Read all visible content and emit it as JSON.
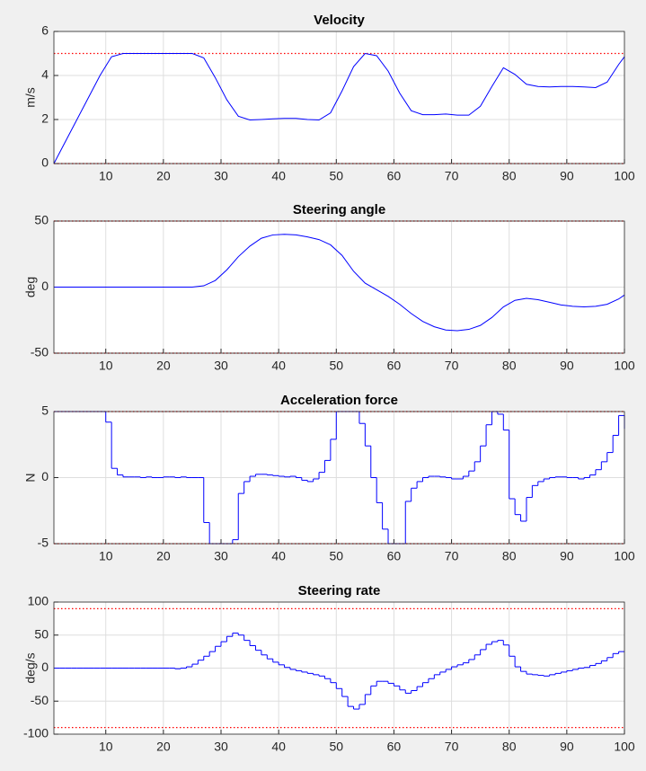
{
  "chart_data": [
    {
      "type": "line",
      "title": "Velocity",
      "ylabel": "m/s",
      "x": [
        1,
        3,
        5,
        7,
        9,
        11,
        13,
        15,
        17,
        19,
        21,
        23,
        25,
        27,
        29,
        31,
        33,
        35,
        37,
        39,
        41,
        43,
        45,
        47,
        49,
        51,
        53,
        55,
        57,
        59,
        61,
        63,
        65,
        67,
        69,
        71,
        73,
        75,
        77,
        79,
        81,
        83,
        85,
        87,
        89,
        91,
        93,
        95,
        97,
        99,
        100
      ],
      "series": [
        {
          "color": "#0000ff",
          "values": [
            0,
            1,
            2,
            3,
            4,
            4.85,
            5,
            5,
            5,
            5,
            5,
            5,
            5,
            4.8,
            3.9,
            2.9,
            2.15,
            1.98,
            2,
            2.03,
            2.05,
            2.05,
            2,
            1.98,
            2.3,
            3.3,
            4.4,
            5,
            4.9,
            4.2,
            3.2,
            2.4,
            2.22,
            2.22,
            2.25,
            2.2,
            2.2,
            2.6,
            3.5,
            4.35,
            4.05,
            3.6,
            3.5,
            3.48,
            3.5,
            3.5,
            3.48,
            3.45,
            3.7,
            4.5,
            4.85
          ]
        }
      ],
      "bounds": [
        0,
        5
      ],
      "bound_color": "#ff0000",
      "xlim": [
        1,
        100
      ],
      "xticks": [
        10,
        20,
        30,
        40,
        50,
        60,
        70,
        80,
        90,
        100
      ],
      "ylim": [
        0,
        6
      ],
      "yticks": [
        0,
        2,
        4,
        6
      ],
      "grid": true
    },
    {
      "type": "line",
      "title": "Steering angle",
      "ylabel": "deg",
      "x": [
        1,
        3,
        5,
        7,
        9,
        11,
        13,
        15,
        17,
        19,
        21,
        23,
        25,
        27,
        29,
        31,
        33,
        35,
        37,
        39,
        41,
        43,
        45,
        47,
        49,
        51,
        53,
        55,
        57,
        59,
        61,
        63,
        65,
        67,
        69,
        71,
        73,
        75,
        77,
        79,
        81,
        83,
        85,
        87,
        89,
        91,
        93,
        95,
        97,
        99,
        100
      ],
      "series": [
        {
          "color": "#0000ff",
          "values": [
            0,
            0,
            0,
            0,
            0,
            0,
            0,
            0,
            0,
            0,
            0,
            0,
            0,
            1,
            5,
            13,
            23,
            31,
            37,
            39.5,
            40,
            39.5,
            38,
            36,
            32,
            24,
            12,
            3,
            -2,
            -7,
            -13,
            -20,
            -26,
            -30,
            -32.5,
            -33,
            -32,
            -29,
            -23,
            -15,
            -10,
            -8.5,
            -9.5,
            -11.5,
            -13.5,
            -14.5,
            -15,
            -14.5,
            -13,
            -9,
            -6
          ]
        }
      ],
      "bounds": [
        -50,
        50
      ],
      "bound_color": "#ff0000",
      "xlim": [
        1,
        100
      ],
      "xticks": [
        10,
        20,
        30,
        40,
        50,
        60,
        70,
        80,
        90,
        100
      ],
      "ylim": [
        -50,
        50
      ],
      "yticks": [
        -50,
        0,
        50
      ],
      "grid": true
    },
    {
      "type": "stairs",
      "title": "Acceleration force",
      "ylabel": "N",
      "x": [
        1,
        2,
        3,
        4,
        5,
        6,
        7,
        8,
        9,
        10,
        11,
        12,
        13,
        14,
        15,
        16,
        17,
        18,
        19,
        20,
        21,
        22,
        23,
        24,
        25,
        26,
        27,
        28,
        29,
        30,
        31,
        32,
        33,
        34,
        35,
        36,
        37,
        38,
        39,
        40,
        41,
        42,
        43,
        44,
        45,
        46,
        47,
        48,
        49,
        50,
        51,
        52,
        53,
        54,
        55,
        56,
        57,
        58,
        59,
        60,
        61,
        62,
        63,
        64,
        65,
        66,
        67,
        68,
        69,
        70,
        71,
        72,
        73,
        74,
        75,
        76,
        77,
        78,
        79,
        80,
        81,
        82,
        83,
        84,
        85,
        86,
        87,
        88,
        89,
        90,
        91,
        92,
        93,
        94,
        95,
        96,
        97,
        98,
        99,
        100
      ],
      "series": [
        {
          "color": "#0000ff",
          "values": [
            5,
            5,
            5,
            5,
            5,
            5,
            5,
            5,
            5,
            4.2,
            0.7,
            0.2,
            0.05,
            0.05,
            0.05,
            0,
            0.05,
            0,
            0,
            0.05,
            0.05,
            0,
            0.05,
            0,
            0,
            0,
            -3.4,
            -5,
            -5,
            -5,
            -5,
            -4.7,
            -1.2,
            -0.3,
            0.1,
            0.25,
            0.25,
            0.2,
            0.15,
            0.1,
            0.05,
            0.1,
            0,
            -0.2,
            -0.3,
            -0.1,
            0.4,
            1.3,
            2.9,
            5,
            5,
            5,
            5,
            4.1,
            2.4,
            0,
            -1.9,
            -3.9,
            -5,
            -5,
            -5,
            -1.8,
            -0.8,
            -0.3,
            0,
            0.1,
            0.1,
            0.05,
            0,
            -0.1,
            -0.1,
            0.1,
            0.5,
            1.2,
            2.4,
            4,
            5,
            4.8,
            3.6,
            -1.6,
            -2.8,
            -3.3,
            -1.5,
            -0.6,
            -0.3,
            -0.1,
            0,
            0.05,
            0.05,
            0,
            0,
            -0.1,
            0,
            0.2,
            0.6,
            1.2,
            1.9,
            3.2,
            4.7,
            3.7
          ]
        }
      ],
      "bounds": [
        -5,
        5
      ],
      "bound_color": "#ff0000",
      "xlim": [
        1,
        100
      ],
      "xticks": [
        10,
        20,
        30,
        40,
        50,
        60,
        70,
        80,
        90,
        100
      ],
      "ylim": [
        -5,
        5
      ],
      "yticks": [
        -5,
        0,
        5
      ],
      "grid": true
    },
    {
      "type": "stairs",
      "title": "Steering rate",
      "ylabel": "deg/s",
      "x": [
        1,
        2,
        3,
        4,
        5,
        6,
        7,
        8,
        9,
        10,
        11,
        12,
        13,
        14,
        15,
        16,
        17,
        18,
        19,
        20,
        21,
        22,
        23,
        24,
        25,
        26,
        27,
        28,
        29,
        30,
        31,
        32,
        33,
        34,
        35,
        36,
        37,
        38,
        39,
        40,
        41,
        42,
        43,
        44,
        45,
        46,
        47,
        48,
        49,
        50,
        51,
        52,
        53,
        54,
        55,
        56,
        57,
        58,
        59,
        60,
        61,
        62,
        63,
        64,
        65,
        66,
        67,
        68,
        69,
        70,
        71,
        72,
        73,
        74,
        75,
        76,
        77,
        78,
        79,
        80,
        81,
        82,
        83,
        84,
        85,
        86,
        87,
        88,
        89,
        90,
        91,
        92,
        93,
        94,
        95,
        96,
        97,
        98,
        99,
        100
      ],
      "series": [
        {
          "color": "#0000ff",
          "values": [
            0,
            0,
            0,
            0,
            0,
            0,
            0,
            0,
            0,
            0,
            0,
            0,
            0,
            0,
            0,
            0,
            0,
            0,
            0,
            0,
            0,
            -1,
            0,
            2,
            6,
            12,
            18,
            25,
            33,
            40,
            48,
            53,
            50,
            42,
            34,
            27,
            20,
            14,
            9,
            5,
            1,
            -2,
            -4,
            -6,
            -8,
            -10,
            -12,
            -16,
            -22,
            -31,
            -43,
            -58,
            -62,
            -55,
            -40,
            -27,
            -20,
            -20,
            -23,
            -27,
            -33,
            -38,
            -34,
            -28,
            -22,
            -16,
            -10,
            -6,
            -2,
            2,
            5,
            8,
            13,
            20,
            28,
            36,
            40,
            42,
            35,
            18,
            2,
            -5,
            -9,
            -10,
            -11,
            -12,
            -10,
            -8,
            -6,
            -4,
            -2,
            0,
            1,
            4,
            7,
            11,
            16,
            22,
            25,
            25
          ]
        }
      ],
      "bounds": [
        -90,
        90
      ],
      "bound_color": "#ff0000",
      "xlim": [
        1,
        100
      ],
      "xticks": [
        10,
        20,
        30,
        40,
        50,
        60,
        70,
        80,
        90,
        100
      ],
      "ylim": [
        -100,
        100
      ],
      "yticks": [
        -100,
        -50,
        0,
        50,
        100
      ],
      "grid": true
    }
  ]
}
